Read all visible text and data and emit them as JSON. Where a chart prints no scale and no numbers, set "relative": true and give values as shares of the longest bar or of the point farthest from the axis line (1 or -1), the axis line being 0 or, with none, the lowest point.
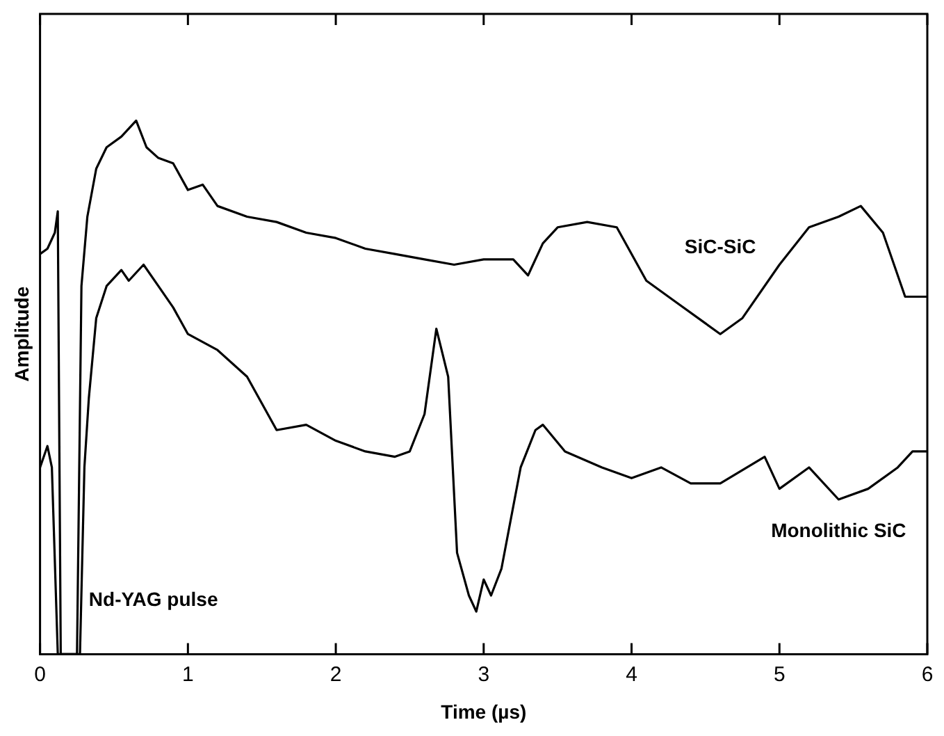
{
  "chart_data": {
    "type": "line",
    "relative": true,
    "xlabel": "Time (µs)",
    "ylabel": "Amplitude",
    "xlim": [
      0,
      6
    ],
    "xticks": [
      0,
      1,
      2,
      3,
      4,
      5,
      6
    ],
    "marker": "none",
    "line_style": "solid",
    "annotations": [
      {
        "text": "Nd-YAG pulse",
        "x": 0.33,
        "y": 0.1
      }
    ],
    "series": [
      {
        "name": "SiC-SiC",
        "color": "#000000",
        "x": [
          0,
          0.05,
          0.1,
          0.12,
          0.14,
          0.25,
          0.28,
          0.32,
          0.38,
          0.45,
          0.55,
          0.65,
          0.72,
          0.8,
          0.9,
          1.0,
          1.1,
          1.2,
          1.4,
          1.6,
          1.8,
          2.0,
          2.2,
          2.4,
          2.6,
          2.8,
          3.0,
          3.2,
          3.3,
          3.4,
          3.5,
          3.7,
          3.9,
          4.1,
          4.3,
          4.5,
          4.6,
          4.75,
          5.0,
          5.2,
          5.4,
          5.55,
          5.7,
          5.85,
          6.0
        ],
        "values": [
          0.75,
          0.76,
          0.79,
          0.83,
          0,
          0,
          0.69,
          0.82,
          0.91,
          0.95,
          0.97,
          1.0,
          0.95,
          0.93,
          0.92,
          0.87,
          0.88,
          0.84,
          0.82,
          0.81,
          0.79,
          0.78,
          0.76,
          0.75,
          0.74,
          0.73,
          0.74,
          0.74,
          0.71,
          0.77,
          0.8,
          0.81,
          0.8,
          0.7,
          0.66,
          0.62,
          0.6,
          0.63,
          0.73,
          0.8,
          0.82,
          0.84,
          0.79,
          0.67,
          0.67
        ]
      },
      {
        "name": "Monolithic SiC",
        "color": "#000000",
        "x": [
          0,
          0.05,
          0.08,
          0.12,
          0.27,
          0.3,
          0.33,
          0.38,
          0.45,
          0.55,
          0.6,
          0.7,
          0.8,
          0.9,
          1.0,
          1.2,
          1.4,
          1.6,
          1.8,
          2.0,
          2.2,
          2.4,
          2.5,
          2.6,
          2.68,
          2.76,
          2.82,
          2.9,
          2.95,
          3.0,
          3.05,
          3.12,
          3.25,
          3.35,
          3.4,
          3.55,
          3.8,
          4.0,
          4.2,
          4.4,
          4.6,
          4.9,
          5.0,
          5.2,
          5.4,
          5.6,
          5.8,
          5.9,
          6.0
        ],
        "values": [
          0.35,
          0.39,
          0.35,
          0,
          0,
          0.35,
          0.48,
          0.63,
          0.69,
          0.72,
          0.7,
          0.73,
          0.69,
          0.65,
          0.6,
          0.57,
          0.52,
          0.42,
          0.43,
          0.4,
          0.38,
          0.37,
          0.38,
          0.45,
          0.61,
          0.52,
          0.19,
          0.11,
          0.08,
          0.14,
          0.11,
          0.16,
          0.35,
          0.42,
          0.43,
          0.38,
          0.35,
          0.33,
          0.35,
          0.32,
          0.32,
          0.37,
          0.31,
          0.35,
          0.29,
          0.31,
          0.35,
          0.38,
          0.38
        ]
      }
    ]
  }
}
